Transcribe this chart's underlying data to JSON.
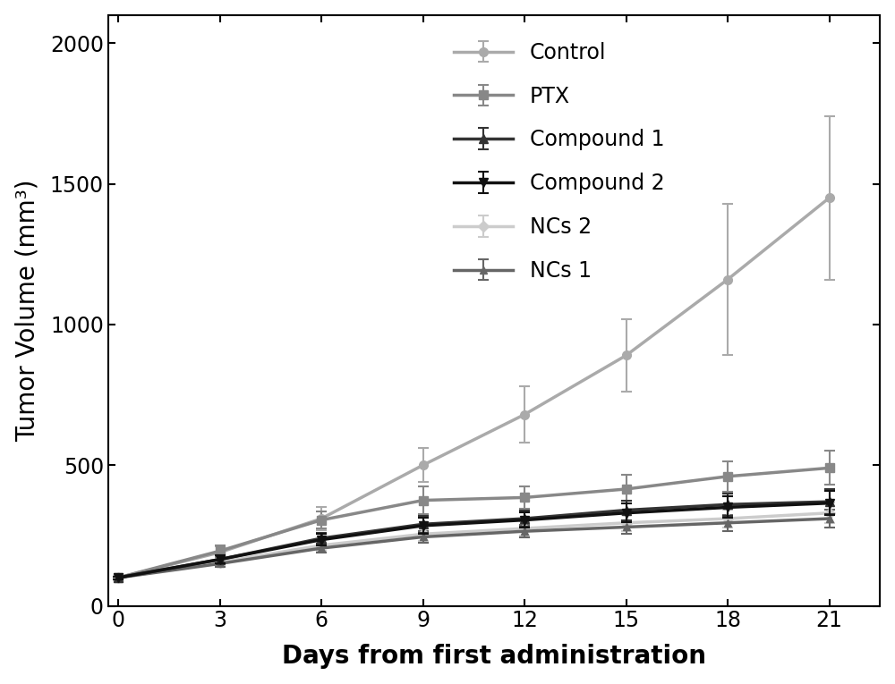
{
  "x": [
    0,
    3,
    6,
    9,
    12,
    15,
    18,
    21
  ],
  "series": {
    "Control": {
      "y": [
        100,
        190,
        310,
        500,
        680,
        890,
        1160,
        1450
      ],
      "yerr": [
        5,
        20,
        40,
        60,
        100,
        130,
        270,
        290
      ],
      "color": "#aaaaaa",
      "marker": "o",
      "linewidth": 2.5,
      "markersize": 7,
      "zorder": 3
    },
    "PTX": {
      "y": [
        100,
        195,
        305,
        375,
        385,
        415,
        460,
        490
      ],
      "yerr": [
        5,
        20,
        30,
        50,
        40,
        50,
        55,
        60
      ],
      "color": "#888888",
      "marker": "s",
      "linewidth": 2.5,
      "markersize": 7,
      "zorder": 3
    },
    "Compound 1": {
      "y": [
        100,
        165,
        240,
        290,
        310,
        340,
        360,
        370
      ],
      "yerr": [
        5,
        15,
        20,
        30,
        30,
        35,
        40,
        45
      ],
      "color": "#333333",
      "marker": "^",
      "linewidth": 2.5,
      "markersize": 7,
      "zorder": 4
    },
    "Compound 2": {
      "y": [
        100,
        165,
        235,
        285,
        305,
        330,
        350,
        365
      ],
      "yerr": [
        5,
        15,
        20,
        28,
        28,
        33,
        38,
        42
      ],
      "color": "#111111",
      "marker": "v",
      "linewidth": 2.5,
      "markersize": 7,
      "zorder": 5
    },
    "NCs 2": {
      "y": [
        100,
        155,
        215,
        255,
        275,
        295,
        310,
        330
      ],
      "yerr": [
        5,
        12,
        18,
        25,
        25,
        28,
        32,
        36
      ],
      "color": "#cccccc",
      "marker": "D",
      "linewidth": 2.5,
      "markersize": 6,
      "zorder": 3
    },
    "NCs 1": {
      "y": [
        100,
        150,
        205,
        245,
        265,
        280,
        295,
        310
      ],
      "yerr": [
        5,
        10,
        15,
        22,
        22,
        25,
        28,
        32
      ],
      "color": "#666666",
      "marker": "^",
      "linewidth": 2.5,
      "markersize": 6,
      "zorder": 3
    }
  },
  "xlabel": "Days from first administration",
  "ylabel": "Tumor Volume (mm³)",
  "xlim": [
    -0.3,
    22.5
  ],
  "ylim": [
    0,
    2100
  ],
  "xticks": [
    0,
    3,
    6,
    9,
    12,
    15,
    18,
    21
  ],
  "yticks": [
    0,
    500,
    1000,
    1500,
    2000
  ],
  "legend_order": [
    "Control",
    "PTX",
    "Compound 1",
    "Compound 2",
    "NCs 2",
    "NCs 1"
  ],
  "label_fontsize": 20,
  "tick_fontsize": 17,
  "legend_fontsize": 17,
  "background_color": "#ffffff"
}
